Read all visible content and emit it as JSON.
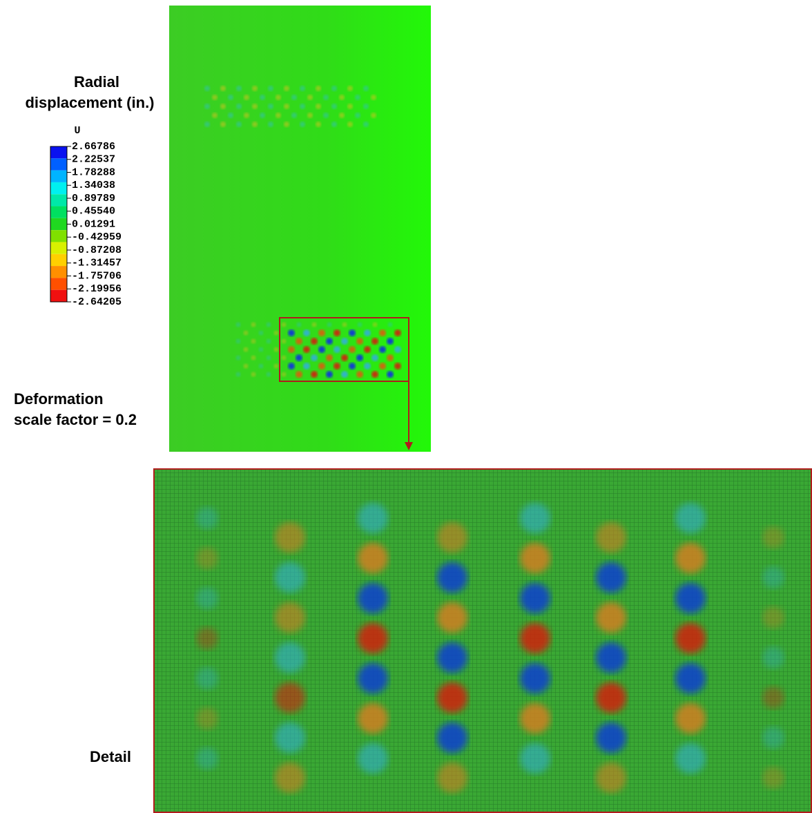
{
  "legend": {
    "title_line1": "Radial",
    "title_line2": "displacement (in.)",
    "variable": "U",
    "labels": [
      "2.66786",
      "2.22537",
      "1.78288",
      "1.34038",
      "0.89789",
      "0.45540",
      "0.01291",
      "-0.42959",
      "-0.87208",
      "-1.31457",
      "-1.75706",
      "-2.19956",
      "-2.64205"
    ],
    "colors": [
      "#0a12f0",
      "#0060ff",
      "#00b4ff",
      "#00f0f0",
      "#00e8a8",
      "#00e060",
      "#20d820",
      "#80e000",
      "#d8f000",
      "#ffd000",
      "#ff9000",
      "#ff5000",
      "#f01010"
    ]
  },
  "annotation": {
    "line1": "Deformation",
    "line2": "scale factor = 0.2"
  },
  "detail_label": "Detail"
}
